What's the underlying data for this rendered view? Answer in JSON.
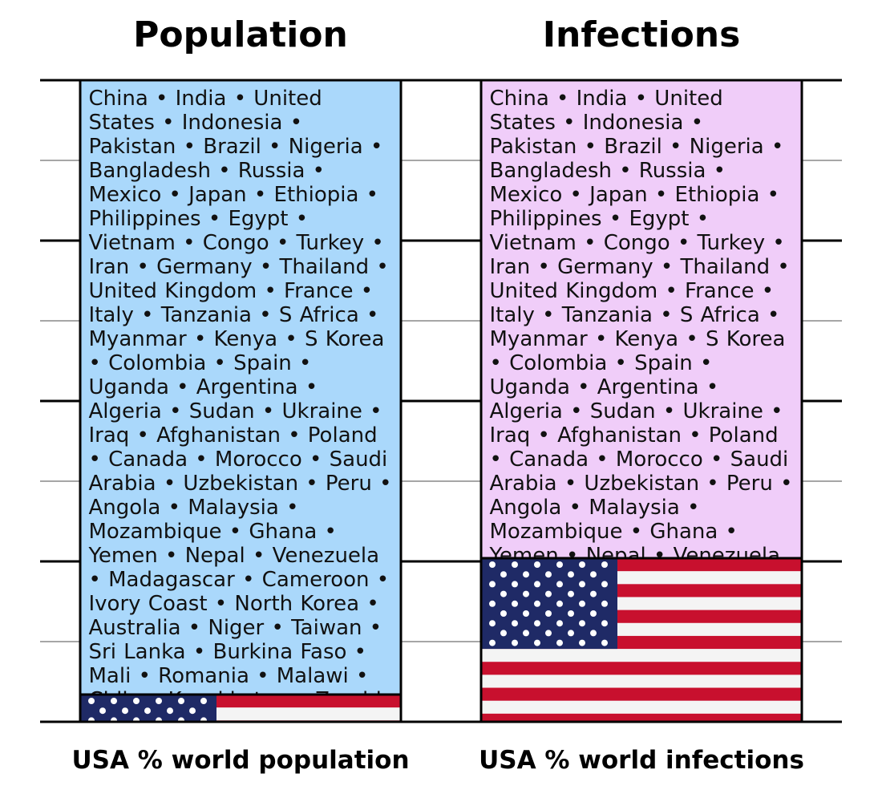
{
  "chart_data": [
    {
      "type": "stacked_bar",
      "title": "Population",
      "xlabel": "USA % world population",
      "segments": [
        {
          "value": 4.25,
          "fill": "us-flag"
        },
        {
          "value": 95.75,
          "color": "#aad8fb",
          "label": "China • India • United States • Indonesia • Pakistan • Brazil • Nigeria • Bangladesh • Russia • Mexico • Japan • Ethiopia • Philippines • Egypt • Vietnam • Congo • Turkey • Iran • Germany • Thailand • United Kingdom • France • Italy • Tanzania • S Africa • Myanmar • Kenya • S Korea • Colombia • Spain • Uganda • Argentina • Algeria • Sudan • Ukraine • Iraq • Afghanistan • Poland • Canada • Morocco • Saudi Arabia • Uzbekistan • Peru • Angola • Malaysia • Mozambique • Ghana • Yemen • Nepal • Venezuela • Madagascar • Cameroon • Ivory Coast • North Korea • Australia • Niger • Taiwan • Sri Lanka • Burkina Faso • Mali • Romania • Malawi • Chile • Kazakhstan • Zambia • Guatemala • Ecuador • Syria • Netherlands • Senegal"
        }
      ],
      "ylim": [
        0,
        100
      ],
      "yticks": [
        0,
        12.5,
        25,
        37.5,
        50,
        62.5,
        75,
        87.5,
        100
      ],
      "grid": true
    },
    {
      "type": "stacked_bar",
      "title": "Infections",
      "xlabel": "USA % world infections",
      "segments": [
        {
          "value": 25.5,
          "fill": "us-flag"
        },
        {
          "value": 74.5,
          "color": "#f0cdf9",
          "label": "China • India • United States • Indonesia • Pakistan • Brazil • Nigeria • Bangladesh • Russia • Mexico • Japan • Ethiopia • Philippines • Egypt • Vietnam • Congo • Turkey • Iran • Germany • Thailand • United Kingdom • France • Italy • Tanzania • S Africa • Myanmar • Kenya • S Korea • Colombia • Spain • Uganda • Argentina • Algeria • Sudan • Ukraine • Iraq • Afghanistan • Poland • Canada • Morocco • Saudi Arabia • Uzbekistan • Peru • Angola • Malaysia • Mozambique • Ghana • Yemen • Nepal • Venezuela • Madagascar • Cameroon • Ivory Coast • North Korea"
        }
      ],
      "ylim": [
        0,
        100
      ],
      "yticks": [
        0,
        12.5,
        25,
        37.5,
        50,
        62.5,
        75,
        87.5,
        100
      ],
      "grid": true
    }
  ]
}
